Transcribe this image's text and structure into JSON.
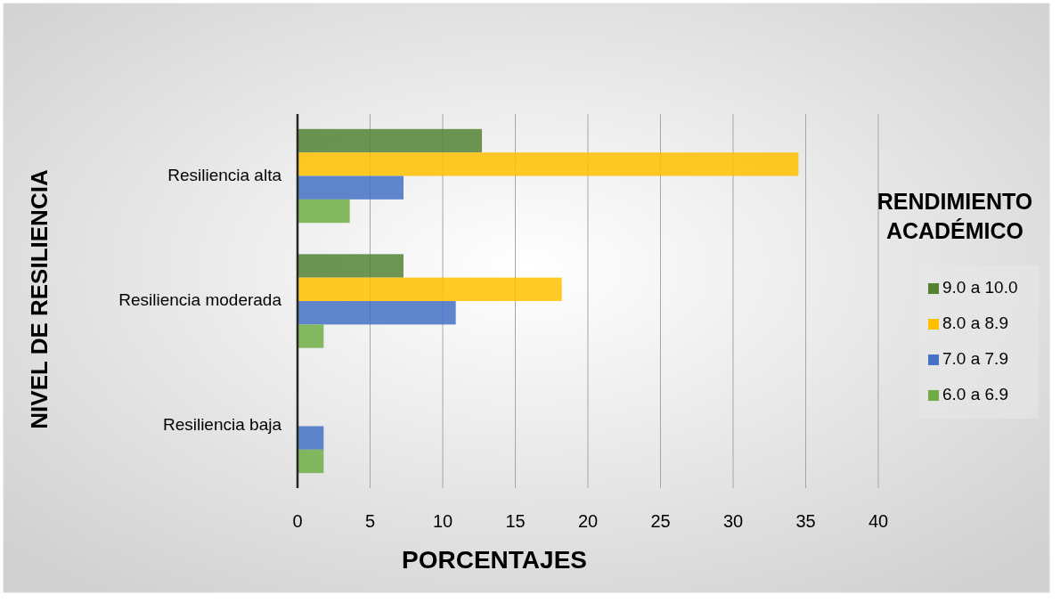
{
  "chart_data": {
    "type": "bar",
    "orientation": "horizontal",
    "xlabel": "PORCENTAJES",
    "ylabel": "NIVEL DE RESILIENCIA",
    "legend_title": "RENDIMIENTO ACADÉMICO",
    "categories": [
      "Resiliencia alta",
      "Resiliencia moderada",
      "Resiliencia baja"
    ],
    "series": [
      {
        "name": "9.0 a 10.0",
        "color": "#548235",
        "values": [
          12.7,
          7.3,
          0
        ]
      },
      {
        "name": "8.0 a 8.9",
        "color": "#ffc000",
        "values": [
          34.5,
          18.2,
          0
        ]
      },
      {
        "name": "7.0 a 7.9",
        "color": "#4472c4",
        "values": [
          7.3,
          10.9,
          1.8
        ]
      },
      {
        "name": "6.0 a 6.9",
        "color": "#70ad47",
        "values": [
          3.6,
          1.8,
          1.8
        ]
      }
    ],
    "xlim": [
      0,
      40
    ],
    "xticks": [
      0,
      5,
      10,
      15,
      20,
      25,
      30,
      35,
      40
    ],
    "grid": "x",
    "legend": "right"
  }
}
